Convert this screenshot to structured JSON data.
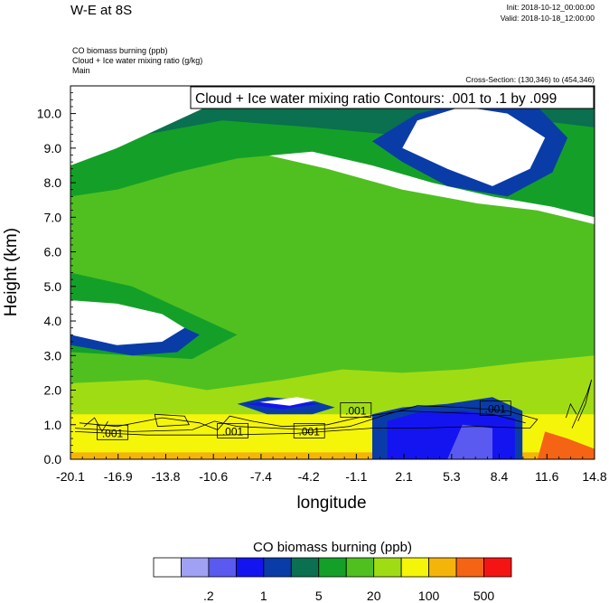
{
  "header": {
    "title": "W-E at 8S",
    "init": "Init: 2018-10-12_00:00:00",
    "valid": "Valid: 2018-10-18_12:00:00",
    "field1": "CO biomass burning   (ppb)",
    "field2": "Cloud + Ice water mixing ratio   (g/kg)",
    "field3": "Main",
    "cross_section": "Cross-Section: (130,346) to (454,346)"
  },
  "chart_data": {
    "type": "heatmap",
    "title": "W-E at 8S",
    "contour_label": "Cloud + Ice water mixing ratio Contours: .001 to .1 by .099",
    "xlabel": "longitude",
    "ylabel": "Height (km)",
    "xlim": [
      -20.1,
      14.8
    ],
    "ylim": [
      0.0,
      10.8
    ],
    "x_ticks": [
      "-20.1",
      "-16.9",
      "-13.8",
      "-10.6",
      "-7.4",
      "-4.2",
      "-1.1",
      "2.1",
      "5.3",
      "8.4",
      "11.6",
      "14.8"
    ],
    "y_ticks": [
      "0.0",
      "1.0",
      "2.0",
      "3.0",
      "4.0",
      "5.0",
      "6.0",
      "7.0",
      "8.0",
      "9.0",
      "10.0"
    ],
    "contour_value_labels": [
      {
        "text": ".001",
        "x": -17.3,
        "y": 0.75
      },
      {
        "text": ".001",
        "x": -9.3,
        "y": 0.8
      },
      {
        "text": ".001",
        "x": -4.2,
        "y": 0.8
      },
      {
        "text": ".001",
        "x": -1.1,
        "y": 1.4
      },
      {
        "text": ".001",
        "x": 8.2,
        "y": 1.45
      }
    ],
    "colorbar": {
      "title": "CO biomass burning  (ppb)",
      "colors": [
        "#ffffff",
        "#a0a0f5",
        "#5a5af0",
        "#1414f0",
        "#0a3ca8",
        "#0a7050",
        "#14a028",
        "#50c020",
        "#a0dc14",
        "#f5f50a",
        "#f5b40a",
        "#f56414",
        "#f51414"
      ],
      "labels": [
        ".2",
        "1",
        "5",
        "20",
        "100",
        "500"
      ]
    },
    "regions": [
      {
        "level": 10,
        "points": [
          [
            -20.1,
            0.0
          ],
          [
            14.8,
            0.0
          ],
          [
            14.8,
            1.0
          ],
          [
            -20.1,
            1.3
          ]
        ]
      },
      {
        "level": 9,
        "points": [
          [
            -20.1,
            0.2
          ],
          [
            14.8,
            0.2
          ],
          [
            14.8,
            3.2
          ],
          [
            12,
            3.8
          ],
          [
            9,
            4.4
          ],
          [
            5,
            4.8
          ],
          [
            0,
            5.2
          ],
          [
            -4,
            5.3
          ],
          [
            -8,
            4.9
          ],
          [
            -11,
            4.1
          ],
          [
            -13,
            3.4
          ],
          [
            -16,
            2.4
          ],
          [
            -20.1,
            2.0
          ]
        ]
      },
      {
        "level": 8,
        "points": [
          [
            -20.1,
            1.3
          ],
          [
            14.8,
            1.3
          ],
          [
            14.8,
            5.5
          ],
          [
            11,
            5.7
          ],
          [
            7,
            6.0
          ],
          [
            3,
            6.3
          ],
          [
            -2,
            6.6
          ],
          [
            -6,
            6.9
          ],
          [
            -10,
            7.0
          ],
          [
            -13,
            6.6
          ],
          [
            -16,
            6.0
          ],
          [
            -20.1,
            6.2
          ]
        ]
      },
      {
        "level": 7,
        "points": [
          [
            -20.1,
            2.2
          ],
          [
            -15,
            2.3
          ],
          [
            -11,
            2.0
          ],
          [
            -6,
            2.3
          ],
          [
            -2,
            2.6
          ],
          [
            2,
            2.5
          ],
          [
            6,
            2.6
          ],
          [
            10,
            2.8
          ],
          [
            14.8,
            3.0
          ],
          [
            14.8,
            6.8
          ],
          [
            11,
            7.2
          ],
          [
            7,
            7.4
          ],
          [
            2,
            7.8
          ],
          [
            -3,
            8.4
          ],
          [
            -7,
            8.8
          ],
          [
            -11,
            9.0
          ],
          [
            -14,
            8.6
          ],
          [
            -17,
            8.0
          ],
          [
            -20.1,
            8.2
          ]
        ]
      },
      {
        "level": 6,
        "points": [
          [
            -20.1,
            3.1
          ],
          [
            -16,
            3.0
          ],
          [
            -12,
            2.9
          ],
          [
            -9,
            3.6
          ],
          [
            -12,
            4.2
          ],
          [
            -16,
            5.0
          ],
          [
            -20.1,
            5.4
          ],
          [
            -20.1,
            7.6
          ],
          [
            -17,
            7.8
          ],
          [
            -13,
            8.3
          ],
          [
            -9,
            8.7
          ],
          [
            -4,
            8.9
          ],
          [
            0,
            8.5
          ],
          [
            4,
            8.0
          ],
          [
            8,
            7.6
          ],
          [
            12,
            7.3
          ],
          [
            14.8,
            7.0
          ],
          [
            14.8,
            10.8
          ],
          [
            -20.1,
            10.8
          ]
        ]
      },
      {
        "level": 5,
        "points": [
          [
            -20.1,
            8.8
          ],
          [
            -15,
            9.4
          ],
          [
            -10,
            9.8
          ],
          [
            -4,
            9.6
          ],
          [
            1,
            9.4
          ],
          [
            6,
            9.6
          ],
          [
            11,
            9.8
          ],
          [
            14.8,
            9.6
          ],
          [
            14.8,
            10.8
          ],
          [
            -20.1,
            10.8
          ]
        ]
      },
      {
        "level": 4,
        "points": [
          [
            -20.1,
            4.2
          ],
          [
            -16,
            4.2
          ],
          [
            -13,
            3.9
          ],
          [
            -11.5,
            3.6
          ],
          [
            -13,
            3.1
          ],
          [
            -16,
            3.0
          ],
          [
            -20.1,
            3.3
          ]
        ]
      },
      {
        "level": 4,
        "points": [
          [
            0,
            9.2
          ],
          [
            3,
            10.0
          ],
          [
            7,
            10.4
          ],
          [
            11,
            10.2
          ],
          [
            13,
            9.3
          ],
          [
            12,
            8.3
          ],
          [
            9,
            7.6
          ],
          [
            5,
            7.9
          ],
          [
            2,
            8.6
          ]
        ]
      },
      {
        "level": 4,
        "points": [
          [
            -9,
            1.6
          ],
          [
            -7,
            1.8
          ],
          [
            -4,
            1.7
          ],
          [
            -2.5,
            1.5
          ],
          [
            -4,
            1.3
          ],
          [
            -7,
            1.3
          ]
        ]
      },
      {
        "level": 3,
        "points": [
          [
            -8.5,
            1.6
          ],
          [
            -6,
            1.7
          ],
          [
            -3.5,
            1.6
          ],
          [
            -6,
            1.45
          ]
        ]
      },
      {
        "level": 4,
        "points": [
          [
            0,
            0.0
          ],
          [
            10,
            0.0
          ],
          [
            10,
            1.4
          ],
          [
            8,
            1.8
          ],
          [
            5,
            1.6
          ],
          [
            2,
            1.5
          ],
          [
            0,
            1.3
          ]
        ]
      },
      {
        "level": 3,
        "points": [
          [
            1,
            0.0
          ],
          [
            9.5,
            0.0
          ],
          [
            9.5,
            1.2
          ],
          [
            6,
            1.4
          ],
          [
            3,
            1.35
          ],
          [
            1,
            1.1
          ]
        ]
      },
      {
        "level": 2,
        "points": [
          [
            5,
            0.0
          ],
          [
            8,
            0.0
          ],
          [
            8,
            0.9
          ],
          [
            6,
            1.0
          ]
        ]
      },
      {
        "level": 0,
        "points": [
          [
            -20.1,
            4.6
          ],
          [
            -17,
            4.5
          ],
          [
            -14,
            4.2
          ],
          [
            -12.5,
            3.8
          ],
          [
            -14,
            3.4
          ],
          [
            -17,
            3.3
          ],
          [
            -20.1,
            3.6
          ]
        ]
      },
      {
        "level": 0,
        "points": [
          [
            -20.1,
            8.5
          ],
          [
            -17,
            9.0
          ],
          [
            -14,
            9.6
          ],
          [
            -11,
            10.2
          ],
          [
            -10,
            10.8
          ],
          [
            -20.1,
            10.8
          ]
        ]
      },
      {
        "level": 0,
        "points": [
          [
            2,
            9.0
          ],
          [
            3,
            9.8
          ],
          [
            6,
            10.2
          ],
          [
            9,
            10.0
          ],
          [
            11.5,
            9.3
          ],
          [
            10.5,
            8.4
          ],
          [
            8,
            7.9
          ],
          [
            5,
            8.4
          ]
        ]
      },
      {
        "level": 0,
        "points": [
          [
            -7.5,
            1.65
          ],
          [
            -5,
            1.8
          ],
          [
            -3.8,
            1.7
          ],
          [
            -5.5,
            1.55
          ]
        ]
      },
      {
        "level": 11,
        "points": [
          [
            11,
            0.0
          ],
          [
            14.8,
            0.0
          ],
          [
            14.8,
            0.3
          ],
          [
            13,
            0.6
          ],
          [
            11.5,
            0.8
          ]
        ]
      }
    ]
  }
}
